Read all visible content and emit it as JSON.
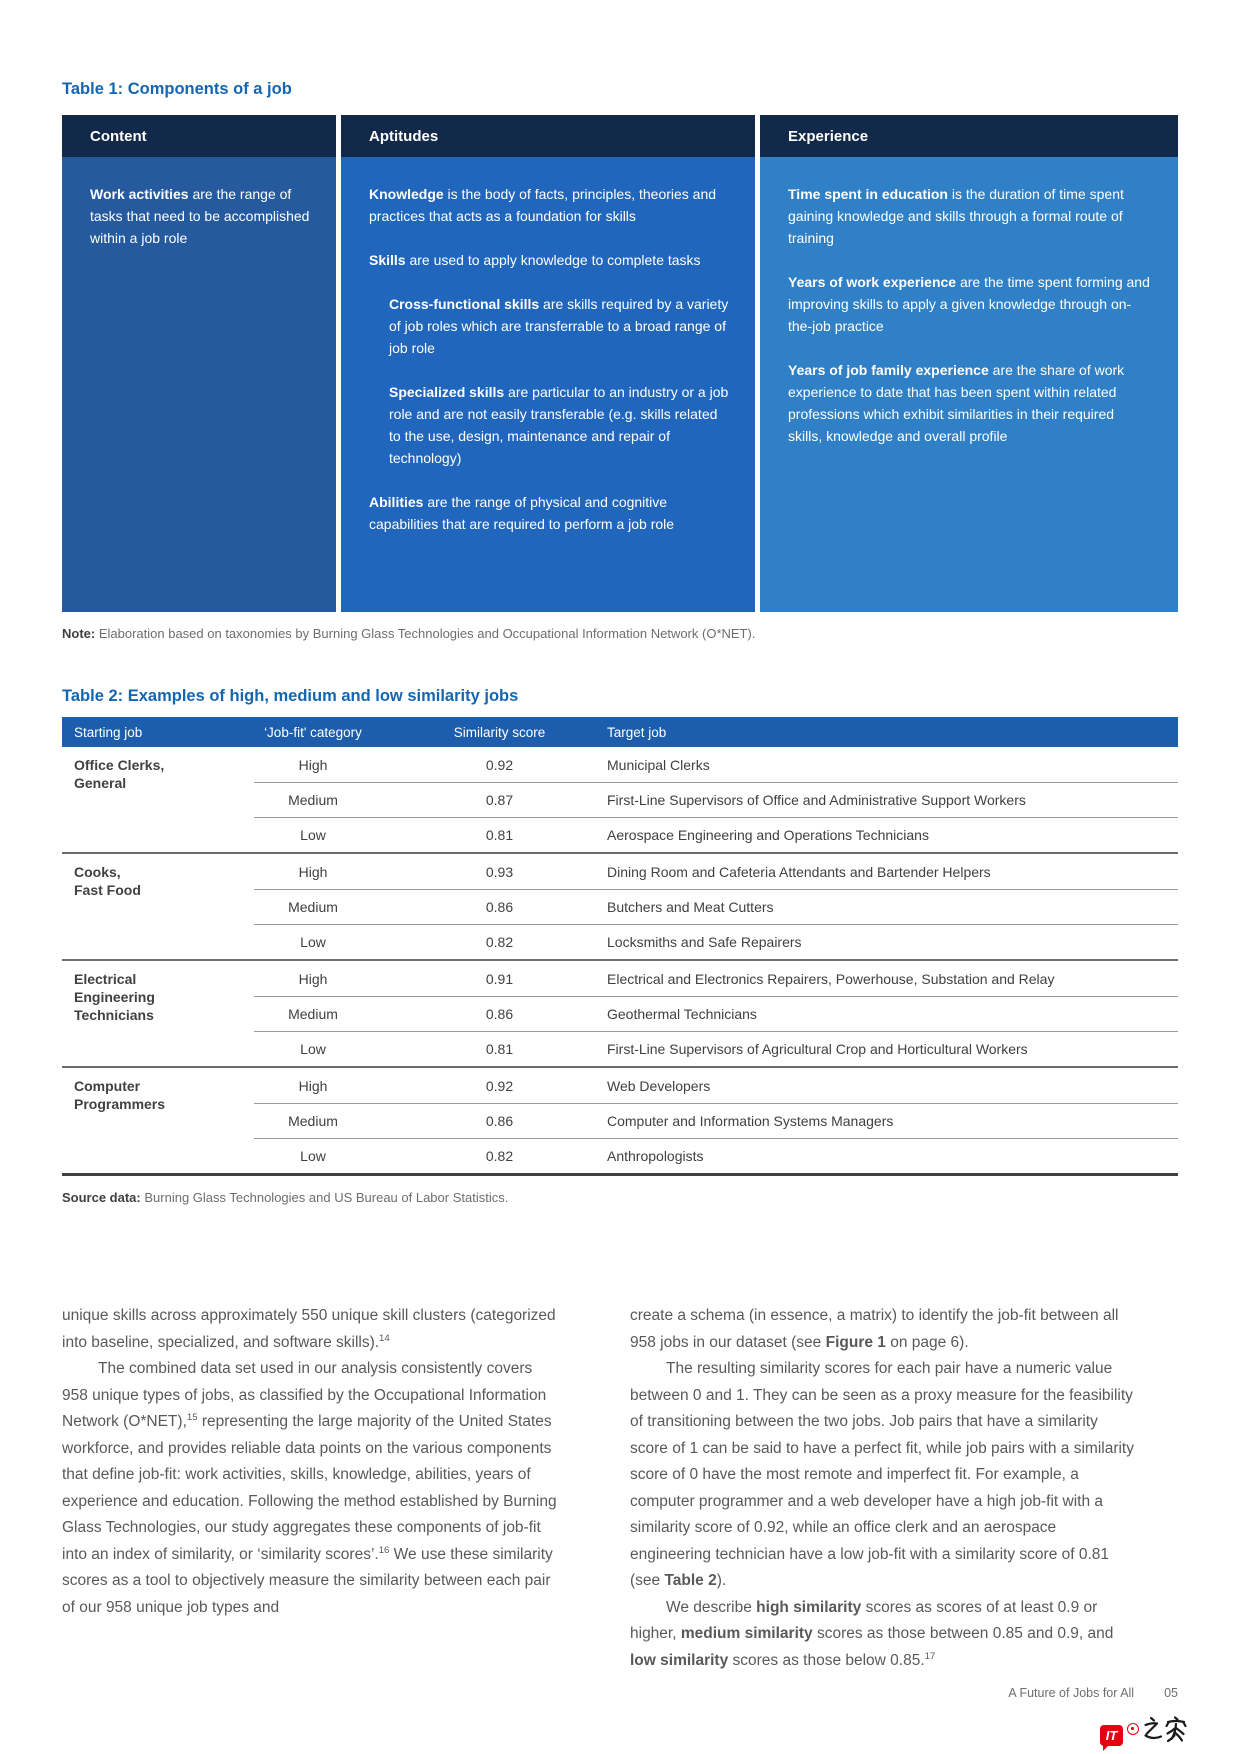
{
  "colors": {
    "table1_header_bg": "#13294a",
    "content_col_bg": "#255a9e",
    "aptitudes_col_bg": "#2166bd",
    "experience_col_bg": "#2f80c6",
    "table2_header_bg": "#1d5dae",
    "title_blue": "#1566b1",
    "body_text": "#58595b",
    "logo_red": "#e60012"
  },
  "table1": {
    "title": "Table 1: Components of a job",
    "note_label": "Note:",
    "note_text": " Elaboration based on taxonomies by Burning Glass Technologies and Occupational Information Network (O*NET).",
    "columns": [
      {
        "header": "Content",
        "paragraphs": [
          {
            "indent": false,
            "runs": [
              {
                "text": "Work activities",
                "bold": true
              },
              {
                "text": " are the range of tasks that need to be accomplished within a job role"
              }
            ]
          }
        ]
      },
      {
        "header": "Aptitudes",
        "paragraphs": [
          {
            "indent": false,
            "runs": [
              {
                "text": "Knowledge",
                "bold": true
              },
              {
                "text": " is the body of facts, principles, theories and practices that acts as a foundation for skills"
              }
            ]
          },
          {
            "indent": false,
            "runs": [
              {
                "text": "Skills",
                "bold": true
              },
              {
                "text": " are used to apply knowledge to complete tasks"
              }
            ]
          },
          {
            "indent": true,
            "runs": [
              {
                "text": "Cross-functional skills",
                "bold": true
              },
              {
                "text": " are skills required by a variety of job roles which are transferrable to a broad range of job role"
              }
            ]
          },
          {
            "indent": true,
            "runs": [
              {
                "text": "Specialized skills",
                "bold": true
              },
              {
                "text": " are particular to an industry or a job role and are not easily transferable (e.g. skills related to the use, design, maintenance and repair of technology)"
              }
            ]
          },
          {
            "indent": false,
            "runs": [
              {
                "text": "Abilities",
                "bold": true
              },
              {
                "text": " are the range of physical and cognitive capabilities that are required to perform a job role"
              }
            ]
          }
        ]
      },
      {
        "header": "Experience",
        "paragraphs": [
          {
            "indent": false,
            "runs": [
              {
                "text": "Time spent in education",
                "bold": true
              },
              {
                "text": " is the duration of time spent gaining knowledge and skills through a formal route of training"
              }
            ]
          },
          {
            "indent": false,
            "runs": [
              {
                "text": "Years of work experience",
                "bold": true
              },
              {
                "text": " are the time spent forming and improving skills to apply a given knowledge through on-the-job practice"
              }
            ]
          },
          {
            "indent": false,
            "runs": [
              {
                "text": "Years of job family experience",
                "bold": true
              },
              {
                "text": " are the share of work experience to date that has been spent within related professions which exhibit similarities in their required skills, knowledge and overall profile"
              }
            ]
          }
        ]
      }
    ]
  },
  "table2": {
    "title": "Table 2: Examples of high, medium and low similarity jobs",
    "headers": [
      "Starting job",
      "‘Job-fit' category",
      "Similarity score",
      "Target job"
    ],
    "groups": [
      {
        "starting_job": "Office Clerks,\nGeneral",
        "rows": [
          [
            "High",
            "0.92",
            "Municipal Clerks"
          ],
          [
            "Medium",
            "0.87",
            "First-Line Supervisors of Office and Administrative Support Workers"
          ],
          [
            "Low",
            "0.81",
            "Aerospace Engineering and Operations Technicians"
          ]
        ]
      },
      {
        "starting_job": "Cooks,\nFast Food",
        "rows": [
          [
            "High",
            "0.93",
            "Dining Room and Cafeteria Attendants and Bartender Helpers"
          ],
          [
            "Medium",
            "0.86",
            "Butchers and Meat Cutters"
          ],
          [
            "Low",
            "0.82",
            "Locksmiths and Safe Repairers"
          ]
        ]
      },
      {
        "starting_job": "Electrical\nEngineering\nTechnicians",
        "rows": [
          [
            "High",
            "0.91",
            "Electrical and Electronics Repairers, Powerhouse, Substation and Relay"
          ],
          [
            "Medium",
            "0.86",
            "Geothermal Technicians"
          ],
          [
            "Low",
            "0.81",
            "First-Line Supervisors of Agricultural Crop and Horticultural Workers"
          ]
        ]
      },
      {
        "starting_job": "Computer\nProgrammers",
        "rows": [
          [
            "High",
            "0.92",
            "Web Developers"
          ],
          [
            "Medium",
            "0.86",
            "Computer and Information Systems Managers"
          ],
          [
            "Low",
            "0.82",
            "Anthropologists"
          ]
        ]
      }
    ],
    "source_label": "Source data:",
    "source_text": " Burning Glass Technologies and US Bureau of Labor Statistics."
  },
  "body": {
    "left_column": [
      {
        "indent": false,
        "runs": [
          {
            "text": "unique skills across approximately 550 unique skill clusters (categorized into baseline, specialized, and software skills)."
          },
          {
            "text": "14",
            "sup": true
          }
        ]
      },
      {
        "indent": true,
        "runs": [
          {
            "text": "The combined data set used in our analysis consistently covers 958 unique types of jobs, as classified by the Occupational Information Network (O*NET),"
          },
          {
            "text": "15",
            "sup": true
          },
          {
            "text": " representing the large majority of the United States workforce, and provides reliable data points on the various components that define job-fit: work activities, skills, knowledge, abilities, years of experience and education. Following the method established by Burning Glass Technologies, our study aggregates these components of job-fit into an index of similarity, or ‘similarity scores’."
          },
          {
            "text": "16",
            "sup": true
          },
          {
            "text": " We use these similarity scores as a tool to objectively measure the similarity between each pair of our 958 unique job types and"
          }
        ]
      }
    ],
    "right_column": [
      {
        "indent": false,
        "runs": [
          {
            "text": "create a schema (in essence, a matrix) to identify the job-fit between all 958 jobs in our dataset (see "
          },
          {
            "text": "Figure 1",
            "bold": true
          },
          {
            "text": " on page 6)."
          }
        ]
      },
      {
        "indent": true,
        "runs": [
          {
            "text": "The resulting similarity scores for each pair have a numeric value between 0 and 1. They can be seen as a proxy measure for the feasibility of transitioning between the two jobs. Job pairs that have a similarity score of 1 can be said to have a perfect fit, while job pairs with a similarity score of 0 have the most remote and imperfect fit. For example, a computer programmer and a web developer have a high job-fit with a similarity score of 0.92, while an office clerk and an aerospace engineering technician have a low job-fit with a similarity score of 0.81 (see "
          },
          {
            "text": "Table 2",
            "bold": true
          },
          {
            "text": ")."
          }
        ]
      },
      {
        "indent": true,
        "runs": [
          {
            "text": "We describe "
          },
          {
            "text": "high similarity",
            "bold": true
          },
          {
            "text": " scores as scores of at least 0.9 or higher, "
          },
          {
            "text": "medium similarity",
            "bold": true
          },
          {
            "text": " scores as those between 0.85 and 0.9, and "
          },
          {
            "text": "low similarity",
            "bold": true
          },
          {
            "text": " scores as those below 0.85."
          },
          {
            "text": "17",
            "sup": true
          }
        ]
      }
    ]
  },
  "footer": {
    "report_title": "A Future of Jobs for All",
    "page_number": "05"
  },
  "logo": {
    "brand_it": "IT",
    "brand_home": "之家"
  }
}
